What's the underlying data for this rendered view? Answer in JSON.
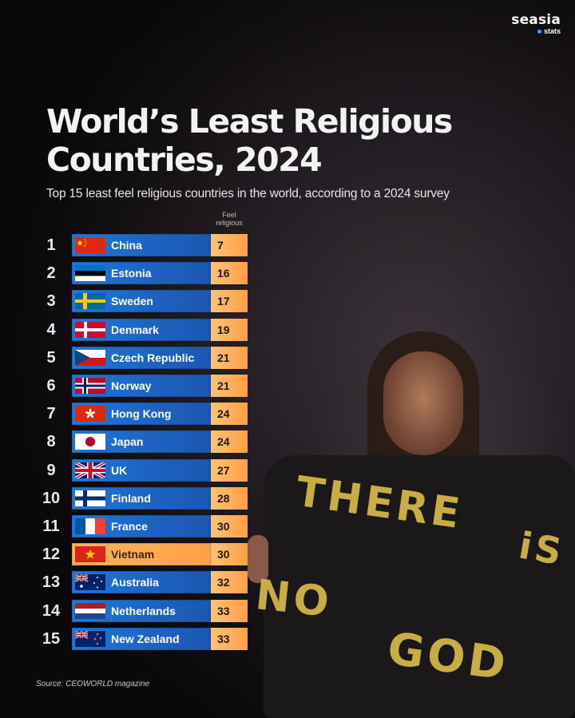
{
  "logo": {
    "brand": "seasia",
    "sub": "stats",
    "dot_color": "#3aa0ff"
  },
  "title_line1": "World’s Least Religious",
  "title_line2": "Countries, 2024",
  "subtitle": "Top 15 least feel religious countries in the world, according to a 2024 survey",
  "column_header": [
    "Feel",
    "religious"
  ],
  "source": "Source: CEOWORLD magazine",
  "poster_text": [
    "THERE",
    "iS",
    "NO",
    "GOD"
  ],
  "colors": {
    "bar": "#1f6fd0",
    "highlight": "#ffab52",
    "value_box": "#ffb060"
  },
  "chart_data": {
    "type": "bar",
    "title": "World’s Least Religious Countries, 2024",
    "subtitle": "Top 15 least feel religious countries in the world, according to a 2024 survey",
    "value_label": "Feel religious",
    "orientation": "horizontal-table",
    "highlighted_category": "Vietnam",
    "rows": [
      {
        "rank": "1",
        "country": "China",
        "flag": "china",
        "value": 7
      },
      {
        "rank": "2",
        "country": "Estonia",
        "flag": "estonia",
        "value": 16
      },
      {
        "rank": "3",
        "country": "Sweden",
        "flag": "sweden",
        "value": 17
      },
      {
        "rank": "4",
        "country": "Denmark",
        "flag": "denmark",
        "value": 19
      },
      {
        "rank": "5",
        "country": "Czech Republic",
        "flag": "czech",
        "value": 21
      },
      {
        "rank": "6",
        "country": "Norway",
        "flag": "norway",
        "value": 21
      },
      {
        "rank": "7",
        "country": "Hong Kong",
        "flag": "hongkong",
        "value": 24
      },
      {
        "rank": "8",
        "country": "Japan",
        "flag": "japan",
        "value": 24
      },
      {
        "rank": "9",
        "country": "UK",
        "flag": "uk",
        "value": 27
      },
      {
        "rank": "10",
        "country": "Finland",
        "flag": "finland",
        "value": 28
      },
      {
        "rank": "11",
        "country": "France",
        "flag": "france",
        "value": 30
      },
      {
        "rank": "12",
        "country": "Vietnam",
        "flag": "vietnam",
        "value": 30
      },
      {
        "rank": "13",
        "country": "Australia",
        "flag": "australia",
        "value": 32
      },
      {
        "rank": "14",
        "country": "Netherlands",
        "flag": "netherlands",
        "value": 33
      },
      {
        "rank": "15",
        "country": "New Zealand",
        "flag": "newzealand",
        "value": 33
      }
    ]
  }
}
